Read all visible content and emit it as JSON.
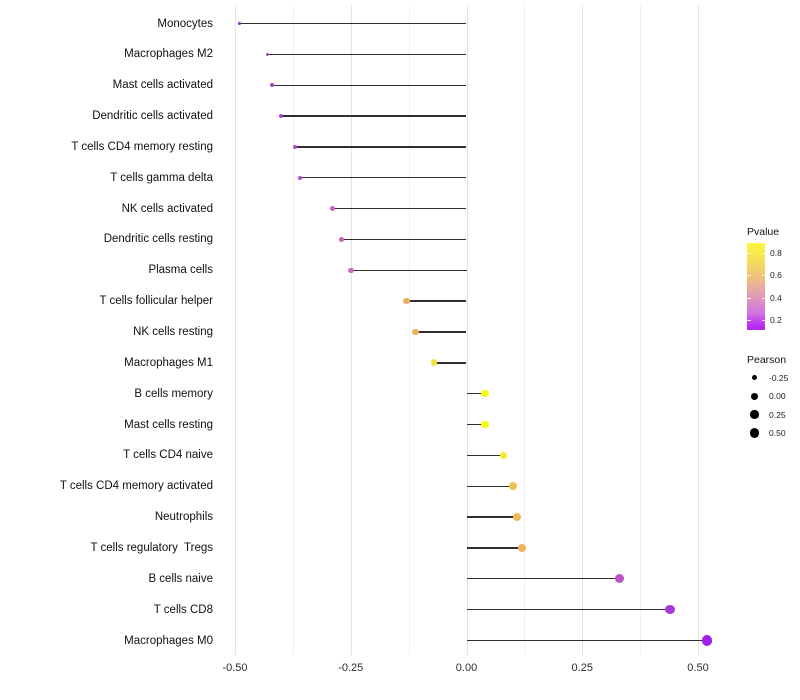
{
  "chart_data": {
    "type": "lollipop",
    "title": "",
    "xlabel": "",
    "ylabel": "",
    "x_axis": {
      "tick_labels": [
        "-0.50",
        "-0.25",
        "0.00",
        "0.25",
        "0.50"
      ],
      "tick_values": [
        -0.5,
        -0.25,
        0,
        0.25,
        0.5
      ],
      "minor_tick_values": [
        -0.375,
        -0.125,
        0.125,
        0.375
      ],
      "range": [
        -0.545,
        0.575
      ],
      "grid": "vertical-only"
    },
    "rows": [
      {
        "label": "Monocytes",
        "pearson": -0.49,
        "pvalue": 0.03,
        "color": "#8f2be0",
        "diameter": 3.2
      },
      {
        "label": "Macrophages M2",
        "pearson": -0.43,
        "pvalue": 0.15,
        "color": "#a73fd3",
        "diameter": 3.6
      },
      {
        "label": "Mast cells activated",
        "pearson": -0.42,
        "pvalue": 0.16,
        "color": "#a941d1",
        "diameter": 3.7
      },
      {
        "label": "Dendritic cells activated",
        "pearson": -0.4,
        "pvalue": 0.17,
        "color": "#ab44ce",
        "diameter": 4.0
      },
      {
        "label": "T cells CD4 memory resting",
        "pearson": -0.37,
        "pvalue": 0.2,
        "color": "#b04cc9",
        "diameter": 4.3
      },
      {
        "label": "T cells gamma delta",
        "pearson": -0.36,
        "pvalue": 0.21,
        "color": "#b24ec6",
        "diameter": 4.4
      },
      {
        "label": "NK cells activated",
        "pearson": -0.29,
        "pvalue": 0.33,
        "color": "#c45fc1",
        "diameter": 5.1
      },
      {
        "label": "Dendritic cells resting",
        "pearson": -0.27,
        "pvalue": 0.36,
        "color": "#c765bd",
        "diameter": 5.3
      },
      {
        "label": "Plasma cells",
        "pearson": -0.25,
        "pvalue": 0.38,
        "color": "#ca6cba",
        "diameter": 5.5
      },
      {
        "label": "T cells follicular helper",
        "pearson": -0.13,
        "pvalue": 0.65,
        "color": "#ebae63",
        "diameter": 6.4
      },
      {
        "label": "NK cells resting",
        "pearson": -0.11,
        "pvalue": 0.67,
        "color": "#edb25d",
        "diameter": 6.6
      },
      {
        "label": "Macrophages M1",
        "pearson": -0.07,
        "pvalue": 0.8,
        "color": "#f3df3e",
        "diameter": 6.8
      },
      {
        "label": "B cells memory",
        "pearson": 0.04,
        "pvalue": 0.88,
        "color": "#f8f718",
        "diameter": 7.6
      },
      {
        "label": "Mast cells resting",
        "pearson": 0.04,
        "pvalue": 0.89,
        "color": "#f9f913",
        "diameter": 7.6
      },
      {
        "label": "T cells CD4 naive",
        "pearson": 0.08,
        "pvalue": 0.83,
        "color": "#f6e92e",
        "diameter": 7.8
      },
      {
        "label": "T cells CD4 memory activated",
        "pearson": 0.1,
        "pvalue": 0.72,
        "color": "#f0c351",
        "diameter": 7.9
      },
      {
        "label": "Neutrophils",
        "pearson": 0.11,
        "pvalue": 0.69,
        "color": "#eeba58",
        "diameter": 8.0
      },
      {
        "label": "T cells regulatory  Tregs",
        "pearson": 0.12,
        "pvalue": 0.68,
        "color": "#edb45c",
        "diameter": 8.0
      },
      {
        "label": "B cells naive",
        "pearson": 0.33,
        "pvalue": 0.31,
        "color": "#be53c6",
        "diameter": 9.2
      },
      {
        "label": "T cells CD8",
        "pearson": 0.44,
        "pvalue": 0.14,
        "color": "#a937db",
        "diameter": 9.7
      },
      {
        "label": "Macrophages M0",
        "pearson": 0.52,
        "pvalue": 0.07,
        "color": "#a01feb",
        "diameter": 10.1
      }
    ],
    "legend": {
      "position": "right",
      "pvalue": {
        "title": "Pvalue",
        "tick_labels": [
          "0.8",
          "0.6",
          "0.4",
          "0.2"
        ],
        "tick_values": [
          0.8,
          0.6,
          0.4,
          0.2
        ],
        "bar_range": [
          0.87,
          0.13
        ],
        "gradient_stops": [
          "#faf63c 0%",
          "#f6de58 20%",
          "#efbe7e 40%",
          "#e29db4 60%",
          "#d176de 80%",
          "#bb2ff0 95%",
          "#b424f4 100%"
        ]
      },
      "pearson": {
        "title": "Pearson",
        "items": [
          {
            "label": "-0.25",
            "diameter": 5.3
          },
          {
            "label": "0.00",
            "diameter": 7.0
          },
          {
            "label": "0.25",
            "diameter": 8.4
          },
          {
            "label": "0.50",
            "diameter": 9.7
          }
        ]
      }
    },
    "stem_color": "#2f2f2f",
    "baseline_x": 0
  }
}
